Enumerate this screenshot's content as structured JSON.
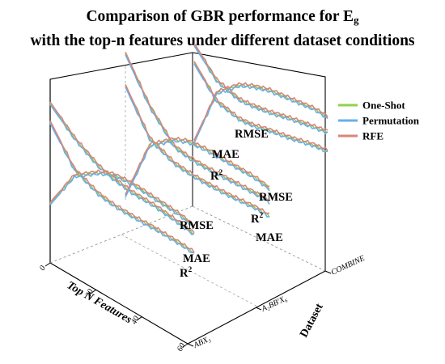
{
  "title": {
    "line1": "Comparison of GBR performance for E",
    "line1_subscript": "g",
    "line2": "with the top-n features under different dataset conditions"
  },
  "chart_data": {
    "type": "line",
    "chart_style": "3d-waterfall",
    "title": "Comparison of GBR performance for Eg with the top-n features under different dataset conditions",
    "x_axis": {
      "label": "Top N Features",
      "ticks": [
        "0",
        "20",
        "40",
        "60"
      ],
      "range": [
        0,
        60
      ]
    },
    "depth_axis": {
      "label": "Dataset",
      "categories": [
        "ABX₃",
        "A₂BB′X₆",
        "COMBINE"
      ],
      "tick_labels": [
        "ABX₃",
        "A₂BB′X₆",
        "COMBINE"
      ]
    },
    "z_axis": {
      "label": "",
      "ticks": []
    },
    "legend": {
      "position": "top-right",
      "entries": [
        {
          "label": "One-Shot",
          "color": "#8fd14f"
        },
        {
          "label": "Permutation",
          "color": "#6aaee8"
        },
        {
          "label": "RFE",
          "color": "#d8857a"
        }
      ]
    },
    "methods": [
      "One-Shot",
      "Permutation",
      "RFE"
    ],
    "metric_labels": {
      "ABX₃": [
        {
          "text": "RMSE",
          "sup": ""
        },
        {
          "text": "MAE",
          "sup": ""
        },
        {
          "text": "R",
          "sup": "2"
        }
      ],
      "A₂BB′X₆": [
        {
          "text": "RMSE",
          "sup": ""
        },
        {
          "text": "R",
          "sup": "2"
        },
        {
          "text": "MAE",
          "sup": ""
        }
      ],
      "COMBINE": [
        {
          "text": "RMSE",
          "sup": ""
        },
        {
          "text": "MAE",
          "sup": ""
        },
        {
          "text": "R",
          "sup": "2"
        }
      ]
    },
    "series": [
      {
        "dataset": "ABX₃",
        "metric": "RMSE",
        "n": [
          1,
          2,
          4,
          6,
          10,
          20,
          40,
          60
        ],
        "values": [
          0.95,
          0.75,
          0.6,
          0.55,
          0.5,
          0.46,
          0.4,
          0.36
        ]
      },
      {
        "dataset": "ABX₃",
        "metric": "MAE",
        "n": [
          1,
          2,
          4,
          6,
          10,
          20,
          40,
          60
        ],
        "values": [
          0.8,
          0.5,
          0.38,
          0.34,
          0.31,
          0.28,
          0.24,
          0.21
        ]
      },
      {
        "dataset": "ABX₃",
        "metric": "R²",
        "n": [
          1,
          2,
          4,
          6,
          10,
          20,
          40,
          60
        ],
        "values": [
          0.15,
          0.45,
          0.55,
          0.58,
          0.57,
          0.52,
          0.47,
          0.42
        ]
      },
      {
        "dataset": "A₂BB′X₆",
        "metric": "RMSE",
        "n": [
          1,
          2,
          4,
          6,
          10,
          20,
          40,
          60
        ],
        "values": [
          1.15,
          0.8,
          0.55,
          0.5,
          0.46,
          0.42,
          0.38,
          0.35
        ]
      },
      {
        "dataset": "A₂BB′X₆",
        "metric": "R²",
        "n": [
          1,
          2,
          4,
          6,
          10,
          20,
          40,
          60
        ],
        "values": [
          0.05,
          0.5,
          0.6,
          0.62,
          0.6,
          0.55,
          0.5,
          0.45
        ]
      },
      {
        "dataset": "A₂BB′X₆",
        "metric": "MAE",
        "n": [
          1,
          2,
          4,
          6,
          10,
          20,
          40,
          60
        ],
        "values": [
          0.9,
          0.55,
          0.42,
          0.38,
          0.34,
          0.3,
          0.27,
          0.24
        ]
      },
      {
        "dataset": "COMBINE",
        "metric": "RMSE",
        "n": [
          1,
          2,
          4,
          6,
          10,
          20,
          40,
          60
        ],
        "values": [
          1.0,
          0.72,
          0.58,
          0.54,
          0.5,
          0.46,
          0.41,
          0.38
        ]
      },
      {
        "dataset": "COMBINE",
        "metric": "MAE",
        "n": [
          1,
          2,
          4,
          6,
          10,
          20,
          40,
          60
        ],
        "values": [
          0.85,
          0.55,
          0.42,
          0.38,
          0.35,
          0.3,
          0.26,
          0.22
        ]
      },
      {
        "dataset": "COMBINE",
        "metric": "R²",
        "n": [
          1,
          2,
          4,
          6,
          10,
          20,
          40,
          60
        ],
        "values": [
          0.2,
          0.62,
          0.7,
          0.7,
          0.68,
          0.62,
          0.56,
          0.5
        ]
      }
    ],
    "grid": false
  }
}
